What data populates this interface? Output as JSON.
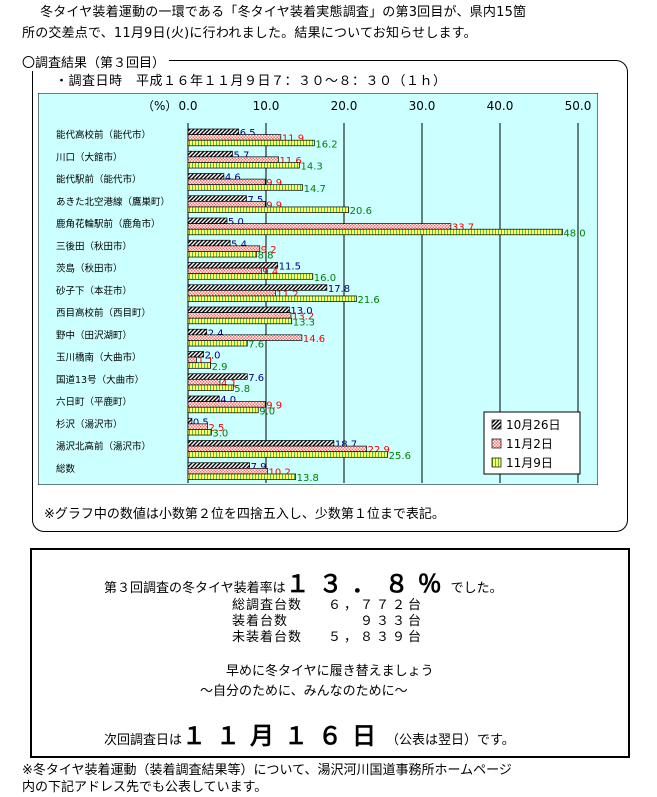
{
  "intro": {
    "line1": "冬タイヤ装着運動の一環である「冬タイヤ装着実態調査」の第3回目が、県内15箇",
    "line2": "所の交差点で、11月9日(火)に行われました。結果についてお知らせします。"
  },
  "section": {
    "title": "〇調査結果（第３回目）",
    "datetime": "・調査日時　平成１６年１１月９日７：３０～８：３０（１ｈ）"
  },
  "chart_data": {
    "type": "bar",
    "orientation": "horizontal",
    "unit_label": "（%）",
    "xlim": [
      0,
      50
    ],
    "ticks": [
      "0.0",
      "10.0",
      "20.0",
      "30.0",
      "40.0",
      "50.0"
    ],
    "categories": [
      "能代高校前（能代市）",
      "川口（大館市）",
      "能代駅前（能代市）",
      "あきた北空港線（鷹巣町）",
      "鹿角花輪駅前（鹿角市）",
      "三後田（秋田市）",
      "茨島（秋田市）",
      "砂子下（本荘市）",
      "西目高校前（西目町）",
      "野中（田沢湖町）",
      "玉川橋南（大曲市）",
      "国道13号（大曲市）",
      "六日町（平鹿町）",
      "杉沢（湯沢市）",
      "湯沢北高前（湯沢市）",
      "総数"
    ],
    "series": [
      {
        "name": "10月26日",
        "color": "#000080",
        "values": [
          6.5,
          5.7,
          4.6,
          7.5,
          5.0,
          5.4,
          11.5,
          17.8,
          13.0,
          2.4,
          2.0,
          7.6,
          4.0,
          0.5,
          18.7,
          7.9
        ]
      },
      {
        "name": "11月2日",
        "color": "#ff0000",
        "values": [
          11.9,
          11.6,
          9.9,
          9.9,
          33.7,
          9.2,
          9.4,
          11.2,
          13.2,
          14.6,
          1.1,
          4.1,
          9.9,
          2.5,
          22.9,
          10.2
        ]
      },
      {
        "name": "11月9日",
        "color": "#008000",
        "values": [
          16.2,
          14.3,
          14.7,
          20.6,
          48.0,
          8.8,
          16.0,
          21.6,
          13.3,
          7.6,
          2.9,
          5.8,
          9.0,
          3.0,
          25.6,
          13.8
        ]
      }
    ],
    "grid": true,
    "legend_position": "bottom-right"
  },
  "note": "※グラフ中の数値は小数第２位を四捨五入し、少数第１位まで表記。",
  "summary": {
    "rate_prefix": "第３回調査の冬タイヤ装着率は",
    "rate_value": "１３．８％",
    "rate_suffix": "でした。",
    "counts": [
      {
        "label": "総調査台数",
        "value": "６，７７２台"
      },
      {
        "label": "装着台数",
        "value": "９３３台"
      },
      {
        "label": "未装着台数",
        "value": "５，８３９台"
      }
    ],
    "slogan1": "早めに冬タイヤに履き替えましょう",
    "slogan2": "～自分のために、みんなのために～",
    "next_prefix": "次回調査日は",
    "next_date": "１１月１６日",
    "next_paren": "（公表は翌日）",
    "next_suffix": "です。"
  },
  "footer": {
    "line1": "※冬タイヤ装着運動（装着調査結果等）について、湯沢河川国道事務所ホームページ",
    "line2": "内の下記アドレス先でも公表しています。"
  }
}
